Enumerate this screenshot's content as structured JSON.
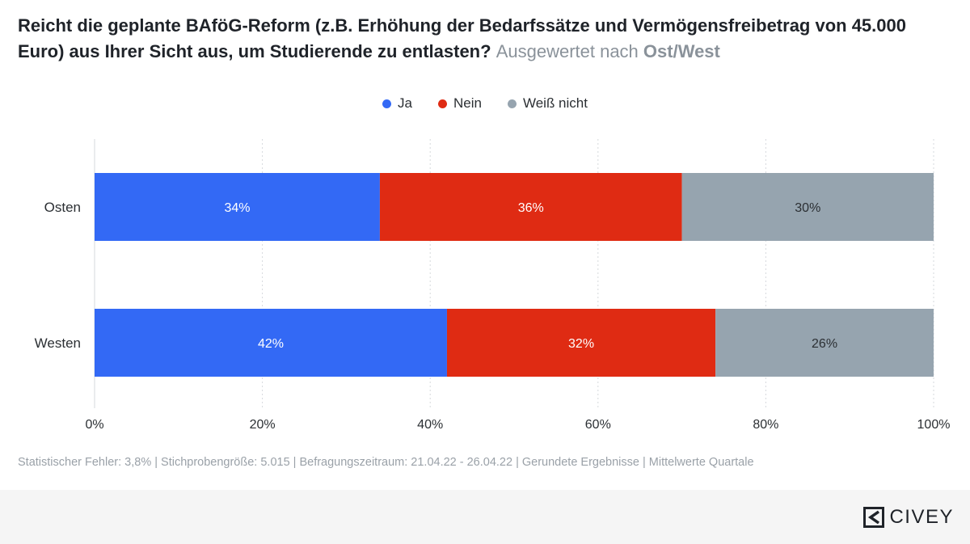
{
  "title": {
    "main": "Reicht die geplante BAföG-Reform (z.B. Erhöhung der Bedarfssätze und Vermögensfreibetrag von 45.000 Euro) aus Ihrer Sicht aus, um Studierende zu entlasten?",
    "sub": "Ausgewertet nach",
    "sub_bold": "Ost/West"
  },
  "legend": [
    {
      "label": "Ja",
      "color": "#3369f5"
    },
    {
      "label": "Nein",
      "color": "#df2b13"
    },
    {
      "label": "Weiß nicht",
      "color": "#96a4af"
    }
  ],
  "chart_data": {
    "type": "bar",
    "orientation": "horizontal",
    "stacked": true,
    "categories": [
      "Osten",
      "Westen"
    ],
    "series": [
      {
        "name": "Ja",
        "values": [
          34,
          42
        ],
        "labels": [
          "34%",
          "42%"
        ],
        "color": "#3369f5"
      },
      {
        "name": "Nein",
        "values": [
          36,
          32
        ],
        "labels": [
          "36%",
          "32%"
        ],
        "color": "#df2b13"
      },
      {
        "name": "Weiß nicht",
        "values": [
          30,
          26
        ],
        "labels": [
          "30%",
          "26%"
        ],
        "color": "#96a4af"
      }
    ],
    "xlim": [
      0,
      100
    ],
    "xticks": [
      0,
      20,
      40,
      60,
      80,
      100
    ],
    "xtick_labels": [
      "0%",
      "20%",
      "40%",
      "60%",
      "80%",
      "100%"
    ],
    "grid": true,
    "legend_position": "top-center"
  },
  "footer": {
    "note": "Statistischer Fehler: 3,8% | Stichprobengröße: 5.015 | Befragungszeitraum: 21.04.22 - 26.04.22 | Gerundete Ergebnisse | Mittelwerte Quartale"
  },
  "brand": {
    "name": "CIVEY"
  }
}
